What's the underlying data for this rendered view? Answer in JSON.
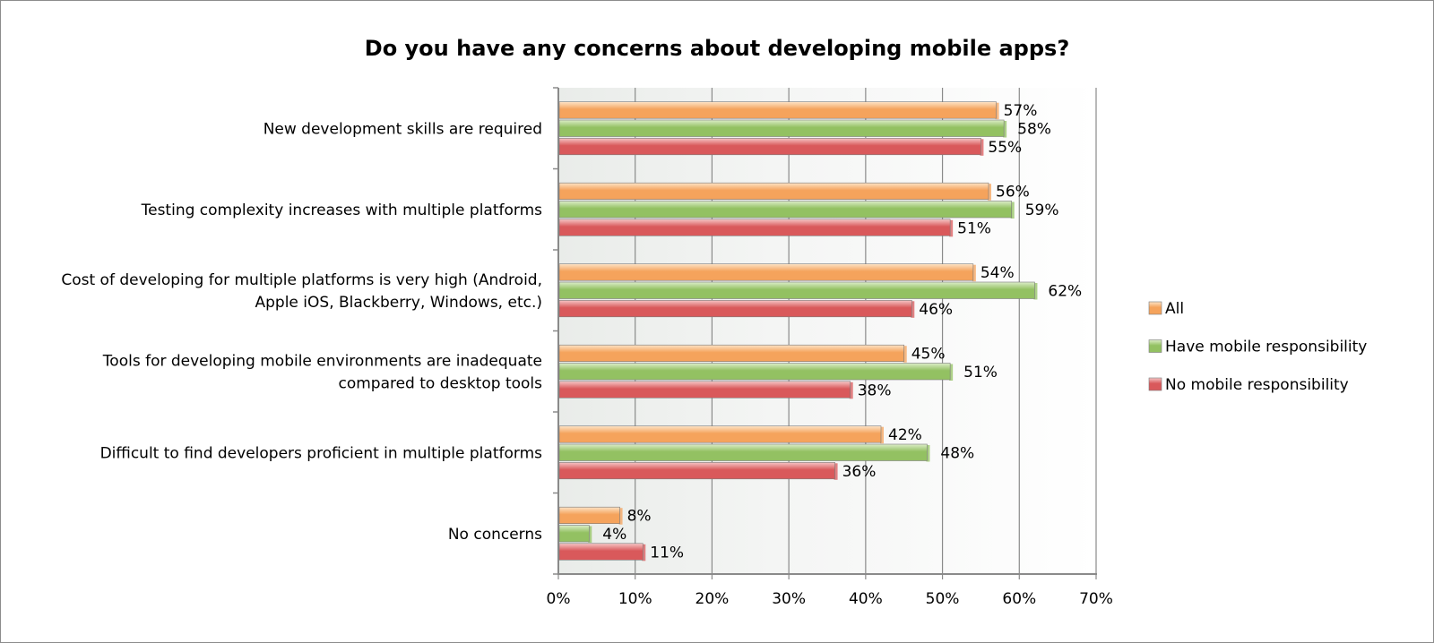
{
  "chart_data": {
    "type": "bar",
    "orientation": "horizontal",
    "title": "Do you have any concerns about developing mobile apps?",
    "categories": [
      [
        "New development skills are required"
      ],
      [
        "Testing complexity increases with multiple platforms"
      ],
      [
        "Cost of developing for multiple platforms is very high (Android,",
        "Apple iOS, Blackberry, Windows, etc.)"
      ],
      [
        "Tools for developing mobile environments are inadequate",
        "compared to desktop tools"
      ],
      [
        "Difficult to find developers proficient in multiple platforms"
      ],
      [
        "No concerns"
      ]
    ],
    "series": [
      {
        "name": "All",
        "values": [
          57,
          56,
          54,
          45,
          42,
          8
        ],
        "labels": [
          "57%",
          "56%",
          "54%",
          "45%",
          "42%",
          "8%"
        ],
        "color": "#f5a35c",
        "light": "#fde3c6"
      },
      {
        "name": "Have mobile responsibility",
        "values": [
          58,
          59,
          62,
          51,
          48,
          4
        ],
        "labels": [
          "58%",
          "59%",
          "62%",
          "51%",
          "48%",
          "4%"
        ],
        "color": "#93c162",
        "light": "#dcedc8"
      },
      {
        "name": "No mobile responsibility",
        "values": [
          55,
          51,
          46,
          38,
          36,
          11
        ],
        "labels": [
          "55%",
          "51%",
          "46%",
          "38%",
          "36%",
          "11%"
        ],
        "color": "#d9595b",
        "light": "#f6c6c6"
      }
    ],
    "xlim": [
      0,
      70
    ],
    "xticks": [
      "0%",
      "10%",
      "20%",
      "30%",
      "40%",
      "50%",
      "60%",
      "70%"
    ],
    "xlabel": "",
    "ylabel": "",
    "grid": true,
    "legend_position": "right"
  }
}
